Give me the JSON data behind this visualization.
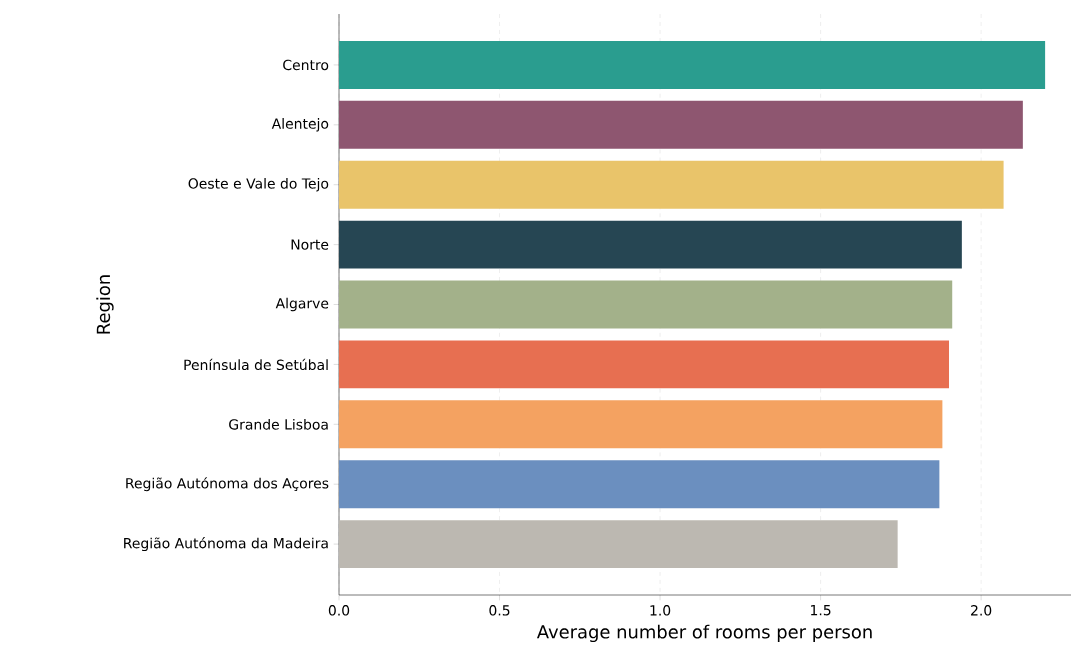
{
  "chart_data": {
    "type": "bar",
    "orientation": "horizontal",
    "xlabel": "Average number of rooms per person",
    "ylabel": "Region",
    "categories": [
      "Centro",
      "Alentejo",
      "Oeste e Vale do Tejo",
      "Norte",
      "Algarve",
      "Península de Setúbal",
      "Grande Lisboa",
      "Região Autónoma dos Açores",
      "Região Autónoma da Madeira"
    ],
    "values": [
      2.2,
      2.13,
      2.07,
      1.94,
      1.91,
      1.9,
      1.88,
      1.87,
      1.74
    ],
    "colors": [
      "#2a9d8f",
      "#8e5670",
      "#e9c46a",
      "#264653",
      "#a3b18a",
      "#e76f51",
      "#f4a261",
      "#6b8fbf",
      "#bcb8b1"
    ],
    "xlim": [
      0,
      2.28
    ],
    "xticks": [
      {
        "value": 0,
        "label": "0.0"
      },
      {
        "value": 0.5,
        "label": "0.5"
      },
      {
        "value": 1,
        "label": "1.0"
      },
      {
        "value": 1.5,
        "label": "1.5"
      },
      {
        "value": 2,
        "label": "2.0"
      }
    ],
    "grid": "x"
  }
}
